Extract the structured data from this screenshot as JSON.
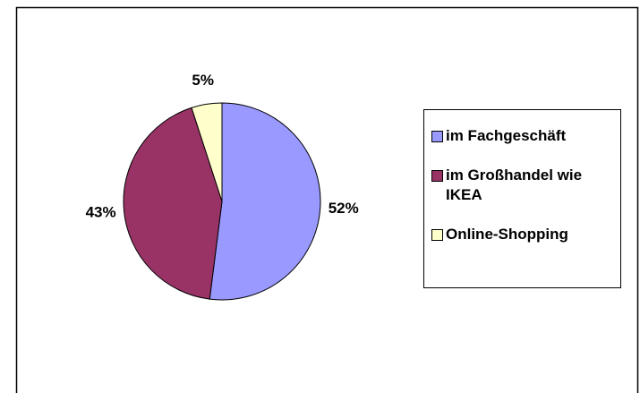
{
  "chart_data": {
    "type": "pie",
    "categories": [
      "im Fachgeschäft",
      "im Großhandel wie IKEA",
      "Online-Shopping"
    ],
    "values": [
      52,
      43,
      5
    ],
    "value_labels": [
      "52%",
      "43%",
      "5%"
    ],
    "colors": [
      "#9999ff",
      "#993366",
      "#ffffcc"
    ],
    "legend": "right"
  }
}
